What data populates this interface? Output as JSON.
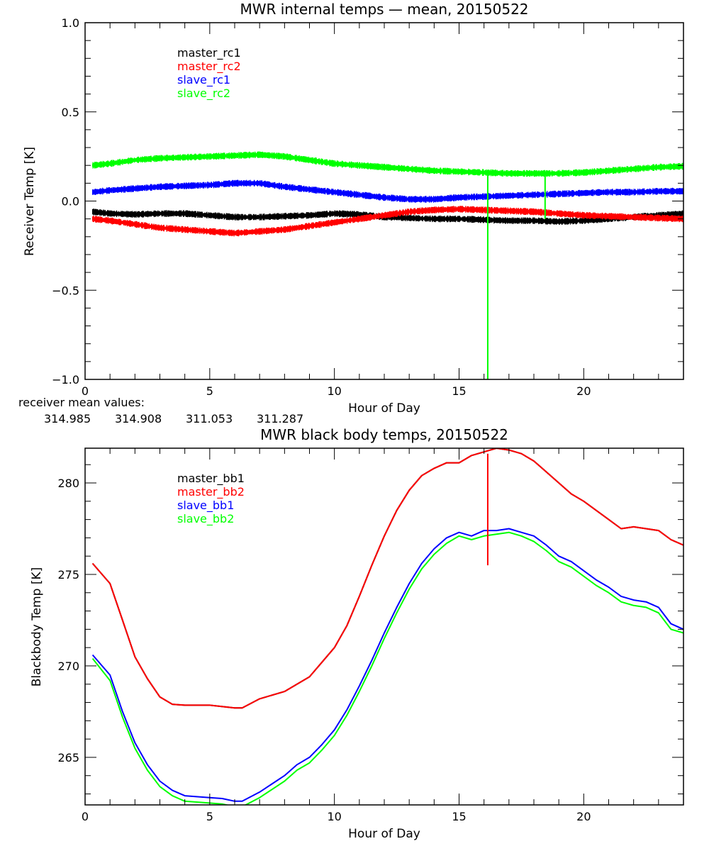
{
  "chart_data": [
    {
      "type": "line",
      "title": "MWR internal temps — mean, 20150522",
      "xlabel": "Hour of Day",
      "ylabel": "Receiver Temp [K]",
      "xlim": [
        0,
        24
      ],
      "ylim": [
        -1.0,
        1.0
      ],
      "xticks": [
        0,
        5,
        10,
        15,
        20
      ],
      "yticks": [
        -1.0,
        -0.5,
        0.0,
        0.5,
        1.0
      ],
      "ytick_labels": [
        "−1.0",
        "−0.5",
        "0.0",
        "0.5",
        "1.0"
      ],
      "legend_position": "top-left",
      "noise_amplitude": 0.012,
      "series": [
        {
          "name": "master_rc1",
          "color": "#000000",
          "x": [
            0.3,
            1,
            2,
            3,
            4,
            5,
            6,
            7,
            8,
            9,
            10,
            11,
            12,
            13,
            14,
            15,
            16,
            17,
            18,
            19,
            20,
            21,
            22,
            23,
            24
          ],
          "y": [
            -0.06,
            -0.07,
            -0.075,
            -0.07,
            -0.07,
            -0.08,
            -0.09,
            -0.09,
            -0.085,
            -0.08,
            -0.07,
            -0.075,
            -0.09,
            -0.095,
            -0.1,
            -0.1,
            -0.105,
            -0.11,
            -0.11,
            -0.115,
            -0.11,
            -0.1,
            -0.09,
            -0.08,
            -0.07
          ]
        },
        {
          "name": "master_rc2",
          "color": "#ff0000",
          "x": [
            0.3,
            1,
            2,
            3,
            4,
            5,
            6,
            7,
            8,
            9,
            10,
            11,
            12,
            13,
            14,
            15,
            16,
            17,
            18,
            19,
            20,
            21,
            22,
            23,
            24
          ],
          "y": [
            -0.1,
            -0.11,
            -0.13,
            -0.15,
            -0.16,
            -0.17,
            -0.18,
            -0.17,
            -0.16,
            -0.14,
            -0.12,
            -0.1,
            -0.08,
            -0.06,
            -0.05,
            -0.045,
            -0.05,
            -0.055,
            -0.06,
            -0.07,
            -0.08,
            -0.085,
            -0.09,
            -0.095,
            -0.1
          ]
        },
        {
          "name": "slave_rc1",
          "color": "#0000ff",
          "x": [
            0.3,
            1,
            2,
            3,
            4,
            5,
            6,
            7,
            8,
            9,
            10,
            11,
            12,
            13,
            14,
            15,
            16,
            17,
            18,
            19,
            20,
            21,
            22,
            23,
            24
          ],
          "y": [
            0.05,
            0.06,
            0.07,
            0.08,
            0.085,
            0.09,
            0.1,
            0.1,
            0.08,
            0.065,
            0.05,
            0.035,
            0.02,
            0.01,
            0.01,
            0.02,
            0.025,
            0.03,
            0.035,
            0.04,
            0.045,
            0.05,
            0.05,
            0.055,
            0.055
          ]
        },
        {
          "name": "slave_rc2",
          "color": "#00ff00",
          "x": [
            0.3,
            1,
            2,
            3,
            4,
            5,
            6,
            7,
            8,
            9,
            10,
            11,
            12,
            13,
            14,
            15,
            16,
            17,
            18,
            19,
            20,
            21,
            22,
            23,
            24
          ],
          "y": [
            0.2,
            0.21,
            0.23,
            0.24,
            0.245,
            0.25,
            0.255,
            0.26,
            0.25,
            0.23,
            0.21,
            0.2,
            0.19,
            0.18,
            0.17,
            0.165,
            0.16,
            0.155,
            0.155,
            0.155,
            0.16,
            0.17,
            0.18,
            0.19,
            0.195
          ]
        }
      ],
      "spikes": [
        {
          "series": "slave_rc2",
          "x": 16.15,
          "from": 0.17,
          "to": -1.0,
          "color": "#00ff00"
        },
        {
          "series": "slave_rc2",
          "x": 18.45,
          "from": 0.15,
          "to": -0.1,
          "color": "#00ff00"
        }
      ],
      "annotations": {
        "label": "receiver mean values:",
        "values": [
          {
            "text": "314.985",
            "color": "#000000"
          },
          {
            "text": "314.908",
            "color": "#ff0000"
          },
          {
            "text": "311.053",
            "color": "#0000ff"
          },
          {
            "text": "311.287",
            "color": "#00ff00"
          }
        ]
      }
    },
    {
      "type": "line",
      "title": "MWR black body temps, 20150522",
      "xlabel": "Hour of Day",
      "ylabel": "Blackbody Temp [K]",
      "xlim": [
        0,
        24
      ],
      "ylim": [
        262.4,
        281.9
      ],
      "xticks": [
        0,
        5,
        10,
        15,
        20
      ],
      "yticks": [
        265,
        270,
        275,
        280
      ],
      "legend_position": "top-left",
      "series": [
        {
          "name": "master_bb1",
          "color": "#000000",
          "x": [
            0.3,
            1,
            1.5,
            2,
            2.5,
            3,
            3.5,
            4,
            5,
            6,
            6.3,
            7,
            8,
            8.5,
            9,
            9.5,
            10,
            10.5,
            11,
            11.5,
            12,
            12.5,
            13,
            13.5,
            14,
            14.5,
            15,
            15.5,
            16,
            16.5,
            17,
            17.5,
            18,
            18.5,
            19,
            19.5,
            20,
            20.5,
            21,
            21.5,
            22,
            22.5,
            23,
            23.5,
            24
          ],
          "y": [
            275.6,
            274.5,
            272.5,
            270.5,
            269.3,
            268.3,
            267.9,
            267.85,
            267.85,
            267.7,
            267.7,
            268.2,
            268.6,
            269.0,
            269.4,
            270.2,
            271.0,
            272.2,
            273.8,
            275.5,
            277.1,
            278.5,
            279.6,
            280.4,
            280.8,
            281.1,
            281.1,
            281.5,
            281.7,
            281.9,
            281.8,
            281.6,
            281.2,
            280.6,
            280.0,
            279.4,
            279.0,
            278.5,
            278.0,
            277.5,
            277.6,
            277.5,
            277.4,
            276.9,
            276.6
          ]
        },
        {
          "name": "master_bb2",
          "color": "#ff0000",
          "x": [
            0.3,
            1,
            1.5,
            2,
            2.5,
            3,
            3.5,
            4,
            5,
            6,
            6.3,
            7,
            8,
            8.5,
            9,
            9.5,
            10,
            10.5,
            11,
            11.5,
            12,
            12.5,
            13,
            13.5,
            14,
            14.5,
            15,
            15.5,
            16,
            16.5,
            17,
            17.5,
            18,
            18.5,
            19,
            19.5,
            20,
            20.5,
            21,
            21.5,
            22,
            22.5,
            23,
            23.5,
            24
          ],
          "y": [
            275.6,
            274.5,
            272.5,
            270.5,
            269.3,
            268.3,
            267.9,
            267.85,
            267.85,
            267.7,
            267.7,
            268.2,
            268.6,
            269.0,
            269.4,
            270.2,
            271.0,
            272.2,
            273.8,
            275.5,
            277.1,
            278.5,
            279.6,
            280.4,
            280.8,
            281.1,
            281.1,
            281.5,
            281.7,
            281.9,
            281.8,
            281.6,
            281.2,
            280.6,
            280.0,
            279.4,
            279.0,
            278.5,
            278.0,
            277.5,
            277.6,
            277.5,
            277.4,
            276.9,
            276.6
          ]
        },
        {
          "name": "slave_bb1",
          "color": "#0000ff",
          "x": [
            0.3,
            1,
            1.5,
            2,
            2.5,
            3,
            3.5,
            4,
            5,
            5.5,
            6,
            6.3,
            7,
            8,
            8.5,
            9,
            9.5,
            10,
            10.5,
            11,
            11.5,
            12,
            12.5,
            13,
            13.5,
            14,
            14.5,
            15,
            15.5,
            16,
            16.5,
            17,
            17.5,
            18,
            18.5,
            19,
            19.5,
            20,
            20.5,
            21,
            21.5,
            22,
            22.5,
            23,
            23.5,
            24
          ],
          "y": [
            270.6,
            269.5,
            267.5,
            265.8,
            264.6,
            263.7,
            263.2,
            262.9,
            262.8,
            262.75,
            262.6,
            262.6,
            263.1,
            264.0,
            264.6,
            265.0,
            265.7,
            266.5,
            267.6,
            268.9,
            270.3,
            271.8,
            273.2,
            274.5,
            275.6,
            276.4,
            277.0,
            277.3,
            277.1,
            277.4,
            277.4,
            277.5,
            277.3,
            277.1,
            276.6,
            276.0,
            275.7,
            275.2,
            274.7,
            274.3,
            273.8,
            273.6,
            273.5,
            273.2,
            272.3,
            272.0
          ]
        },
        {
          "name": "slave_bb2",
          "color": "#00ff00",
          "x": [
            0.3,
            1,
            1.5,
            2,
            2.5,
            3,
            3.5,
            4,
            5,
            5.5,
            6,
            6.3,
            7,
            8,
            8.5,
            9,
            9.5,
            10,
            10.5,
            11,
            11.5,
            12,
            12.5,
            13,
            13.5,
            14,
            14.5,
            15,
            15.5,
            16,
            16.5,
            17,
            17.5,
            18,
            18.5,
            19,
            19.5,
            20,
            20.5,
            21,
            21.5,
            22,
            22.5,
            23,
            23.5,
            24
          ],
          "y": [
            270.4,
            269.2,
            267.2,
            265.5,
            264.3,
            263.4,
            262.9,
            262.6,
            262.5,
            262.45,
            262.3,
            262.3,
            262.8,
            263.7,
            264.3,
            264.7,
            265.4,
            266.2,
            267.3,
            268.6,
            270.0,
            271.5,
            272.9,
            274.2,
            275.3,
            276.1,
            276.7,
            277.1,
            276.9,
            277.1,
            277.2,
            277.3,
            277.1,
            276.8,
            276.3,
            275.7,
            275.4,
            274.9,
            274.4,
            274.0,
            273.5,
            273.3,
            273.2,
            272.9,
            272.0,
            271.8
          ]
        }
      ],
      "spikes": [
        {
          "series": "master_bb2",
          "x": 16.15,
          "from": 281.6,
          "to": 275.5,
          "color": "#ff0000"
        }
      ]
    }
  ]
}
